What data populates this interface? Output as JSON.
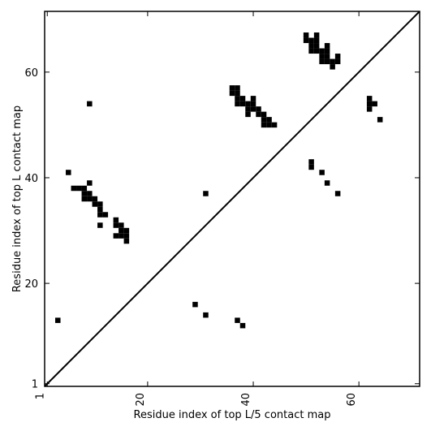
{
  "chart_data": {
    "type": "scatter",
    "marker": "square",
    "xlabel": "Residue index of top L/5 contact map",
    "ylabel": "Residue index of top L contact map",
    "xlim": [
      0.5,
      71.5
    ],
    "ylim": [
      0.5,
      71.5
    ],
    "xticks": [
      {
        "value": 1,
        "label": "1"
      },
      {
        "value": 20,
        "label": "20"
      },
      {
        "value": 40,
        "label": "40"
      },
      {
        "value": 60,
        "label": "60"
      }
    ],
    "yticks": [
      {
        "value": 1,
        "label": "1"
      },
      {
        "value": 20,
        "label": "20"
      },
      {
        "value": 40,
        "label": "40"
      },
      {
        "value": 60,
        "label": "60"
      }
    ],
    "diagonal": true,
    "color": "#000000",
    "lower_triangle": [
      [
        3,
        13
      ],
      [
        29,
        16
      ],
      [
        31,
        14
      ],
      [
        37,
        13
      ],
      [
        38,
        12
      ]
    ],
    "upper_triangle": [
      [
        9,
        54
      ],
      [
        5,
        41
      ],
      [
        6,
        38
      ],
      [
        7,
        38
      ],
      [
        8,
        38
      ],
      [
        8,
        37
      ],
      [
        9,
        37
      ],
      [
        8,
        36
      ],
      [
        9,
        36
      ],
      [
        9,
        39
      ],
      [
        10,
        36
      ],
      [
        10,
        35
      ],
      [
        11,
        35
      ],
      [
        11,
        34
      ],
      [
        11,
        33
      ],
      [
        12,
        33
      ],
      [
        11,
        31
      ],
      [
        14,
        32
      ],
      [
        14,
        31
      ],
      [
        15,
        31
      ],
      [
        15,
        30
      ],
      [
        16,
        30
      ],
      [
        14,
        29
      ],
      [
        15,
        29
      ],
      [
        16,
        29
      ],
      [
        16,
        28
      ],
      [
        31,
        37
      ],
      [
        36,
        57
      ],
      [
        37,
        57
      ],
      [
        36,
        56
      ],
      [
        37,
        56
      ],
      [
        37,
        55
      ],
      [
        38,
        55
      ],
      [
        37,
        54
      ],
      [
        38,
        54
      ],
      [
        39,
        54
      ],
      [
        40,
        55
      ],
      [
        39,
        53
      ],
      [
        40,
        53
      ],
      [
        40,
        54
      ],
      [
        41,
        53
      ],
      [
        39,
        52
      ],
      [
        41,
        52
      ],
      [
        42,
        52
      ],
      [
        42,
        51
      ],
      [
        43,
        51
      ],
      [
        42,
        50
      ],
      [
        43,
        50
      ],
      [
        44,
        50
      ],
      [
        50,
        67
      ],
      [
        52,
        67
      ],
      [
        50,
        66
      ],
      [
        51,
        66
      ],
      [
        52,
        66
      ],
      [
        51,
        65
      ],
      [
        52,
        65
      ],
      [
        54,
        65
      ],
      [
        51,
        64
      ],
      [
        52,
        64
      ],
      [
        53,
        64
      ],
      [
        54,
        64
      ],
      [
        53,
        63
      ],
      [
        54,
        63
      ],
      [
        56,
        63
      ],
      [
        53,
        62
      ],
      [
        54,
        62
      ],
      [
        55,
        62
      ],
      [
        56,
        62
      ],
      [
        55,
        61
      ],
      [
        62,
        55
      ],
      [
        62,
        54
      ],
      [
        63,
        54
      ],
      [
        62,
        53
      ],
      [
        64,
        51
      ],
      [
        51,
        43
      ],
      [
        51,
        42
      ],
      [
        53,
        41
      ],
      [
        54,
        39
      ],
      [
        56,
        37
      ]
    ]
  }
}
